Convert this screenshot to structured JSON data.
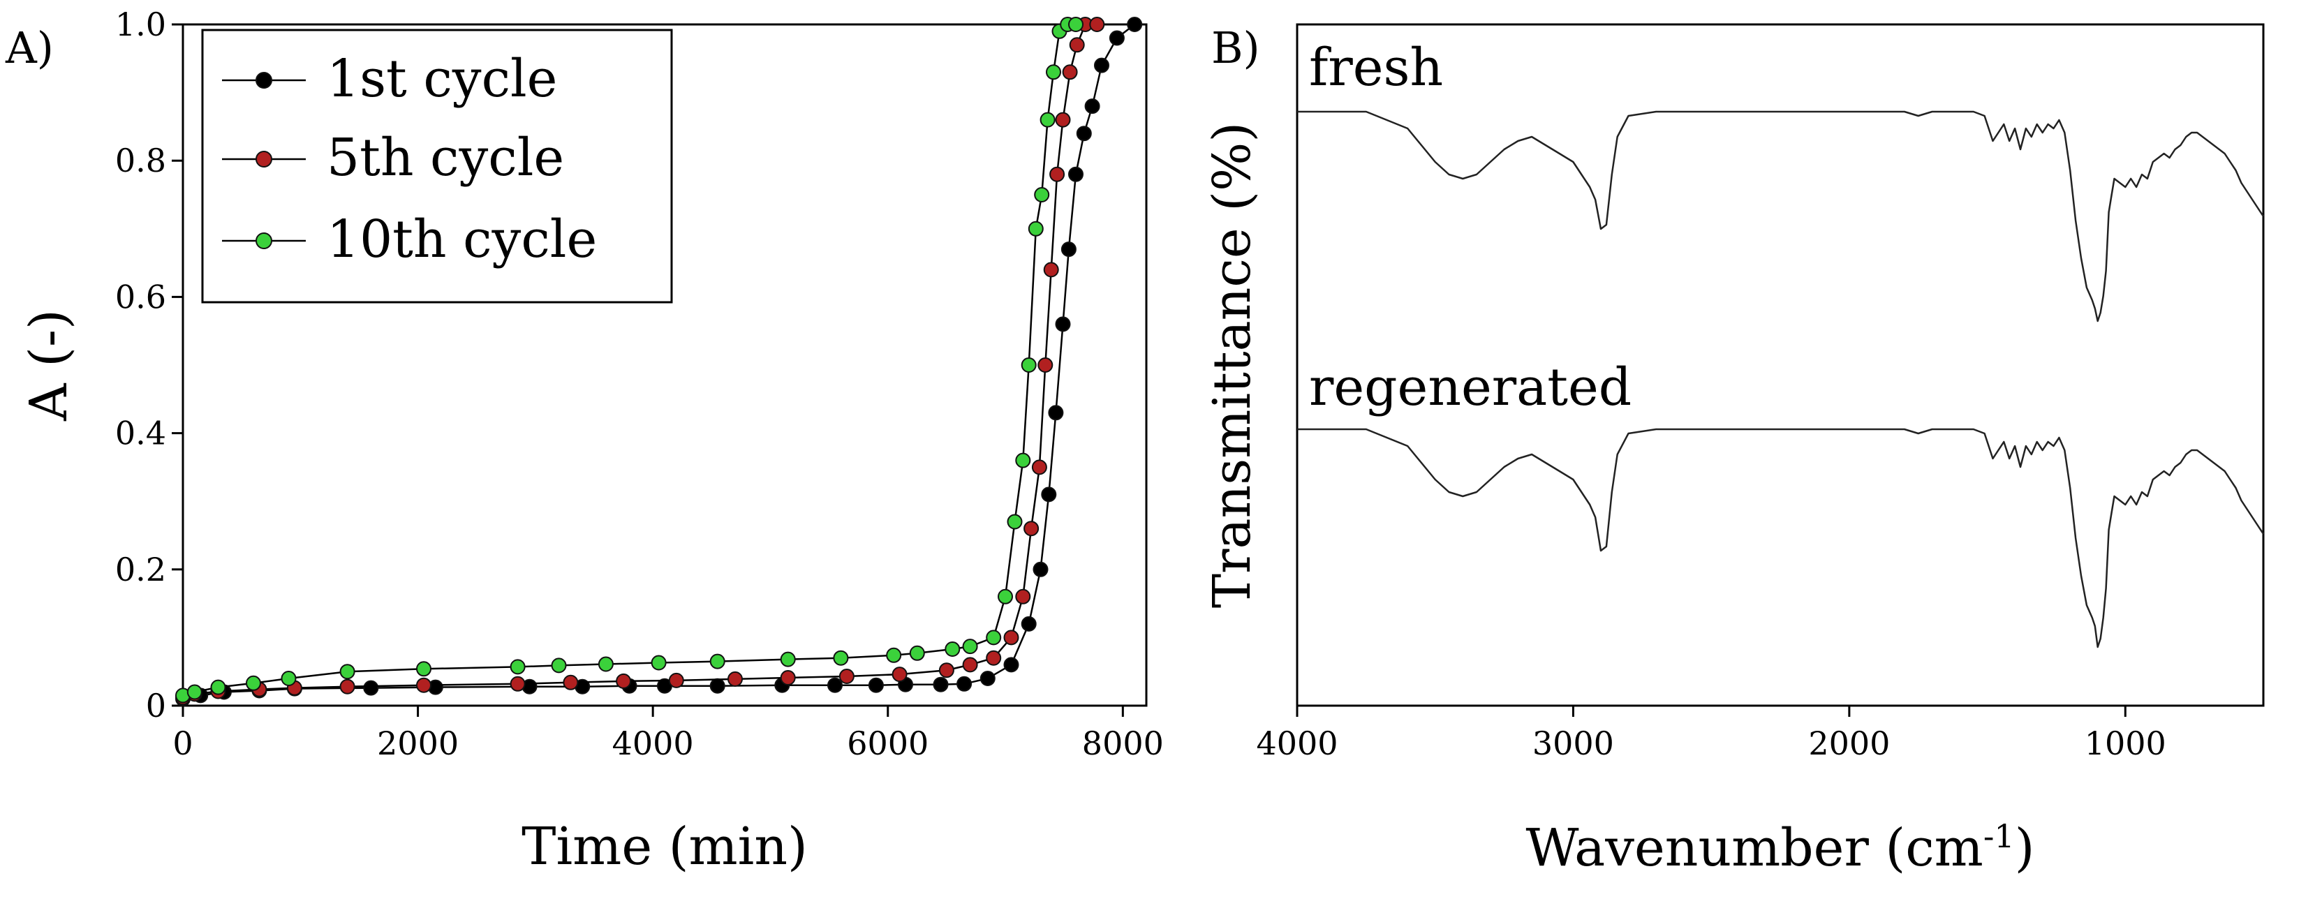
{
  "figure": {
    "panel_a_label": "A)",
    "panel_b_label": "B)"
  },
  "chart_data": [
    {
      "type": "line",
      "panel": "A)",
      "xlabel": "Time (min)",
      "ylabel": "A (-)",
      "xlim": [
        0,
        8200
      ],
      "ylim": [
        0,
        1.0
      ],
      "xticks": [
        "0",
        "2000",
        "4000",
        "6000",
        "8000"
      ],
      "yticks": [
        "0",
        "0.2",
        "0.4",
        "0.6",
        "0.8",
        "1.0"
      ],
      "legend_position": "top-left",
      "grid": false,
      "series": [
        {
          "name": "1st cycle",
          "color": "#000000",
          "x": [
            0,
            150,
            350,
            650,
            950,
            1600,
            2150,
            2950,
            3400,
            3800,
            4100,
            4550,
            5100,
            5550,
            5900,
            6150,
            6450,
            6650,
            6850,
            7050,
            7200,
            7300,
            7370,
            7430,
            7490,
            7540,
            7600,
            7670,
            7740,
            7820,
            7950,
            8100
          ],
          "y": [
            0.01,
            0.015,
            0.02,
            0.022,
            0.025,
            0.026,
            0.027,
            0.028,
            0.028,
            0.029,
            0.029,
            0.029,
            0.03,
            0.03,
            0.03,
            0.031,
            0.031,
            0.032,
            0.04,
            0.06,
            0.12,
            0.2,
            0.31,
            0.43,
            0.56,
            0.67,
            0.78,
            0.84,
            0.88,
            0.94,
            0.98,
            1.0
          ]
        },
        {
          "name": "5th cycle",
          "color": "#b12020",
          "x": [
            0,
            100,
            300,
            650,
            950,
            1400,
            2050,
            2850,
            3300,
            3750,
            4200,
            4700,
            5150,
            5650,
            6100,
            6500,
            6700,
            6900,
            7050,
            7150,
            7220,
            7290,
            7340,
            7390,
            7440,
            7490,
            7550,
            7610,
            7680,
            7780
          ],
          "y": [
            0.012,
            0.017,
            0.021,
            0.024,
            0.026,
            0.028,
            0.03,
            0.032,
            0.034,
            0.036,
            0.037,
            0.039,
            0.041,
            0.043,
            0.046,
            0.052,
            0.06,
            0.07,
            0.1,
            0.16,
            0.26,
            0.35,
            0.5,
            0.64,
            0.78,
            0.86,
            0.93,
            0.97,
            1.0,
            1.0
          ]
        },
        {
          "name": "10th cycle",
          "color": "#3bd13b",
          "x": [
            0,
            100,
            300,
            600,
            900,
            1400,
            2050,
            2850,
            3200,
            3600,
            4050,
            4550,
            5150,
            5600,
            6050,
            6250,
            6550,
            6700,
            6900,
            7000,
            7080,
            7150,
            7200,
            7260,
            7310,
            7360,
            7410,
            7460,
            7530,
            7600
          ],
          "y": [
            0.015,
            0.02,
            0.027,
            0.033,
            0.04,
            0.05,
            0.054,
            0.057,
            0.059,
            0.061,
            0.063,
            0.065,
            0.068,
            0.07,
            0.074,
            0.077,
            0.083,
            0.087,
            0.1,
            0.16,
            0.27,
            0.36,
            0.5,
            0.7,
            0.75,
            0.86,
            0.93,
            0.99,
            1.0,
            1.0
          ]
        }
      ]
    },
    {
      "type": "line",
      "panel": "B)",
      "xlabel": "Wavenumber (cm",
      "xlabel_superscript": "-1",
      "xlabel_close": ")",
      "ylabel": "Transmittance (%)",
      "xlim": [
        4000,
        500
      ],
      "x_reversed": true,
      "xticks": [
        "4000",
        "3000",
        "2000",
        "1000"
      ],
      "y_ticks_shown": false,
      "grid": false,
      "series": [
        {
          "name": "fresh",
          "color": "#222222",
          "x": [
            4000,
            3750,
            3600,
            3500,
            3450,
            3400,
            3350,
            3300,
            3250,
            3200,
            3150,
            3100,
            3050,
            3000,
            2970,
            2940,
            2920,
            2900,
            2880,
            2860,
            2840,
            2800,
            2700,
            2500,
            2200,
            1900,
            1800,
            1750,
            1700,
            1600,
            1550,
            1510,
            1480,
            1460,
            1440,
            1420,
            1400,
            1380,
            1360,
            1340,
            1320,
            1300,
            1280,
            1260,
            1240,
            1220,
            1200,
            1180,
            1160,
            1140,
            1120,
            1110,
            1100,
            1090,
            1080,
            1070,
            1060,
            1050,
            1040,
            1020,
            1000,
            980,
            960,
            940,
            920,
            900,
            880,
            860,
            840,
            820,
            800,
            780,
            760,
            740,
            720,
            700,
            680,
            660,
            640,
            620,
            600,
            580,
            560,
            540,
            520,
            500
          ],
          "y": [
            100,
            100,
            96,
            88,
            85,
            84,
            85,
            88,
            91,
            93,
            94,
            92,
            90,
            88,
            85,
            82,
            79,
            72,
            73,
            85,
            94,
            99,
            100,
            100,
            100,
            100,
            100,
            99,
            100,
            100,
            100,
            99,
            93,
            95,
            97,
            93,
            96,
            91,
            96,
            94,
            97,
            95,
            97,
            96,
            98,
            95,
            86,
            74,
            65,
            58,
            55,
            53,
            50,
            52,
            56,
            62,
            76,
            80,
            84,
            83,
            82,
            84,
            82,
            85,
            84,
            88,
            89,
            90,
            89,
            91,
            92,
            94,
            95,
            95,
            94,
            93,
            92,
            91,
            90,
            88,
            86,
            83,
            81,
            79,
            77,
            75
          ]
        },
        {
          "name": "regenerated",
          "color": "#222222",
          "x": [
            4000,
            3750,
            3600,
            3500,
            3450,
            3400,
            3350,
            3300,
            3250,
            3200,
            3150,
            3100,
            3050,
            3000,
            2970,
            2940,
            2920,
            2900,
            2880,
            2860,
            2840,
            2800,
            2700,
            2500,
            2200,
            1900,
            1800,
            1750,
            1700,
            1600,
            1550,
            1510,
            1480,
            1460,
            1440,
            1420,
            1400,
            1380,
            1360,
            1340,
            1320,
            1300,
            1280,
            1260,
            1240,
            1220,
            1200,
            1180,
            1160,
            1140,
            1120,
            1110,
            1100,
            1090,
            1080,
            1070,
            1060,
            1050,
            1040,
            1020,
            1000,
            980,
            960,
            940,
            920,
            900,
            880,
            860,
            840,
            820,
            800,
            780,
            760,
            740,
            720,
            700,
            680,
            660,
            640,
            620,
            600,
            580,
            560,
            540,
            520,
            500
          ],
          "y": [
            100,
            100,
            96,
            88,
            85,
            84,
            85,
            88,
            91,
            93,
            94,
            92,
            90,
            88,
            85,
            82,
            79,
            71,
            72,
            85,
            94,
            99,
            100,
            100,
            100,
            100,
            100,
            99,
            100,
            100,
            100,
            99,
            93,
            95,
            97,
            93,
            96,
            91,
            96,
            94,
            97,
            95,
            97,
            96,
            98,
            95,
            86,
            74,
            65,
            58,
            55,
            53,
            48,
            50,
            55,
            62,
            76,
            80,
            84,
            83,
            82,
            84,
            82,
            85,
            84,
            88,
            89,
            90,
            89,
            91,
            92,
            94,
            95,
            95,
            94,
            93,
            92,
            91,
            90,
            88,
            86,
            83,
            81,
            79,
            77,
            75
          ]
        }
      ]
    }
  ]
}
